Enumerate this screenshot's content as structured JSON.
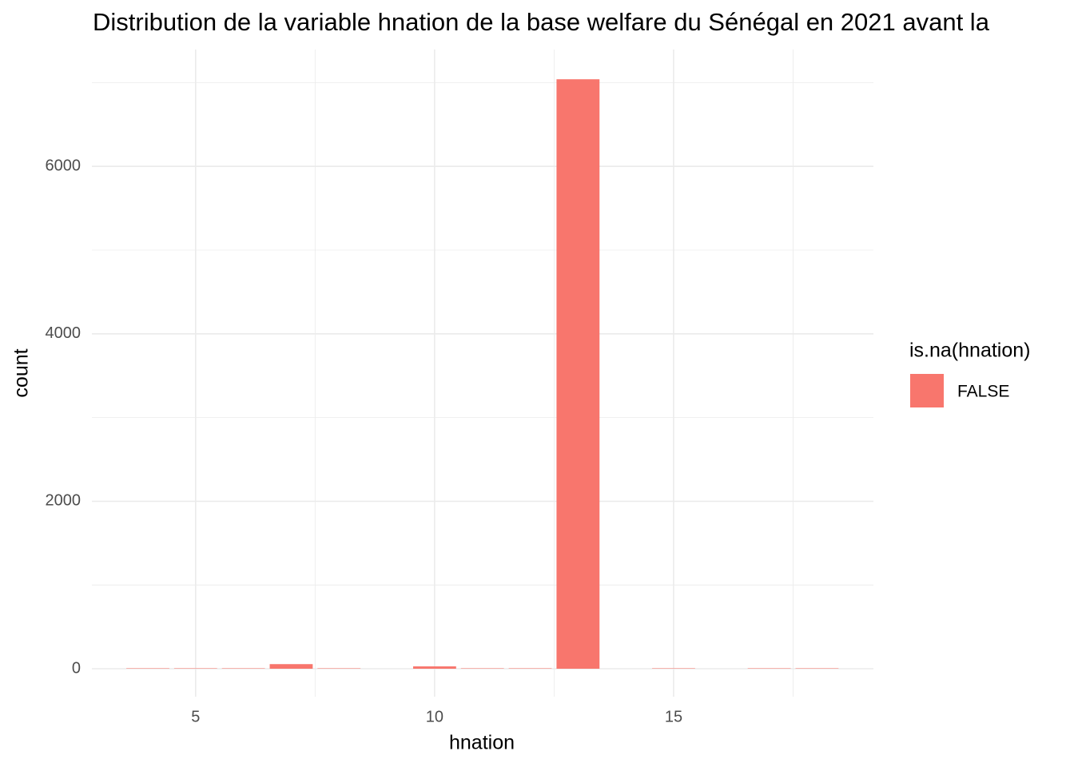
{
  "chart_data": {
    "type": "histogram",
    "title": "Distribution de la variable hnation de la base welfare du Sénégal en 2021 avant la",
    "x_label": "hnation",
    "y_label": "count",
    "legend_title": "is.na(hnation)",
    "bins": [
      3.5,
      4.5,
      5.5,
      6.5,
      7.5,
      8.5,
      9.5,
      10.5,
      11.5,
      12.5,
      13.5,
      14.5,
      15.5,
      16.5,
      17.5,
      18.5
    ],
    "series": [
      {
        "name": "FALSE",
        "color": "#F8766D",
        "values": [
          5,
          5,
          5,
          55,
          5,
          0,
          28,
          5,
          5,
          7040,
          0,
          5,
          0,
          5,
          5
        ]
      }
    ],
    "xlim": [
      2.83,
      19.18
    ],
    "ylim": [
      -334,
      7395
    ],
    "xticks": [
      5,
      10,
      15
    ],
    "yticks": [
      0,
      2000,
      4000,
      6000
    ],
    "x_minor_ticks": [
      7.5,
      12.5,
      17.5
    ],
    "y_minor_ticks": [
      1000,
      3000,
      5000,
      7000
    ],
    "grid": true,
    "legend_position": "right"
  }
}
